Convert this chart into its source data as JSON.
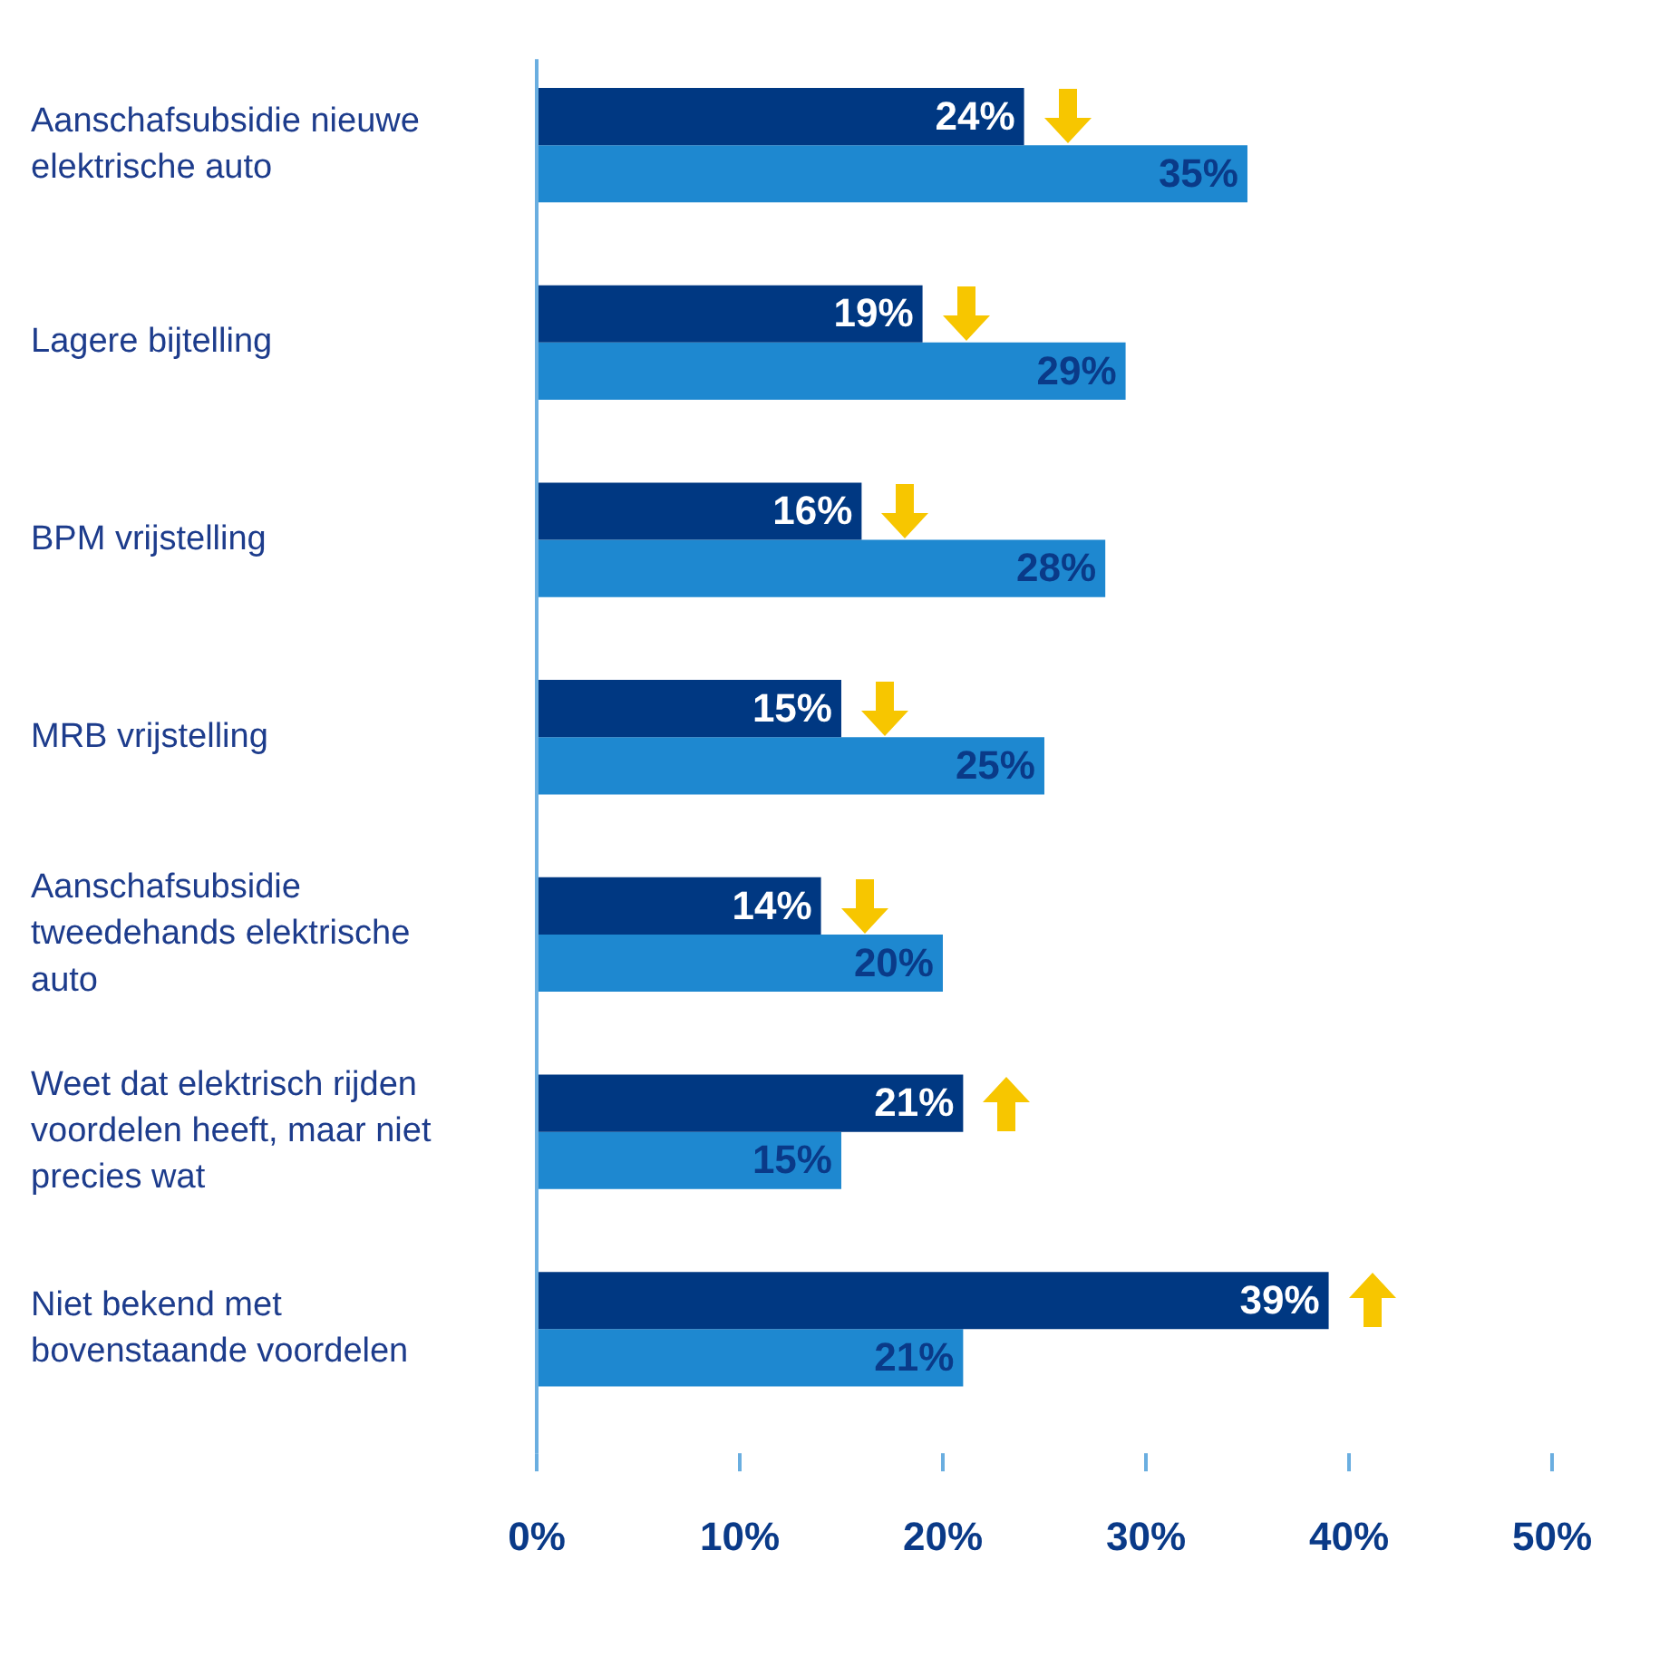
{
  "chart_data": {
    "type": "bar",
    "orientation": "horizontal",
    "categories": [
      "Aanschafsubsidie nieuwe elektrische auto",
      "Lagere bijtelling",
      "BPM vrijstelling",
      "MRB vrijstelling",
      "Aanschafsubsidie tweedehands elektrische auto",
      "Weet dat elektrisch rijden voordelen heeft, maar niet precies wat",
      "Niet bekend met bovenstaande voordelen"
    ],
    "series": [
      {
        "color": "#003882",
        "values": [
          24,
          19,
          16,
          15,
          14,
          21,
          39
        ],
        "value_labels": [
          "24%",
          "19%",
          "16%",
          "15%",
          "14%",
          "21%",
          "39%"
        ]
      },
      {
        "color": "#1e88d0",
        "values": [
          35,
          29,
          28,
          25,
          20,
          15,
          21
        ],
        "value_labels": [
          "35%",
          "29%",
          "28%",
          "25%",
          "20%",
          "15%",
          "21%"
        ]
      }
    ],
    "xlim": [
      0,
      50
    ],
    "xticks": [
      {
        "value": 0,
        "label": "0%"
      },
      {
        "value": 10,
        "label": "10%"
      },
      {
        "value": 20,
        "label": "20%"
      },
      {
        "value": 30,
        "label": "30%"
      },
      {
        "value": 40,
        "label": "40%"
      },
      {
        "value": 50,
        "label": "50%"
      }
    ],
    "grid": false,
    "legend": false
  }
}
